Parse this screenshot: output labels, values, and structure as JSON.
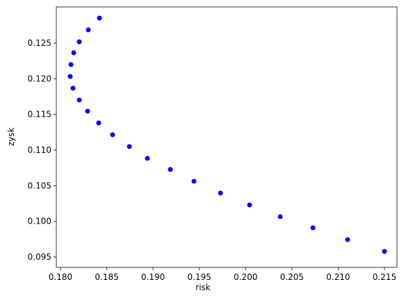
{
  "chart_data": {
    "type": "scatter",
    "xlabel": "risk",
    "ylabel": "zysk",
    "color": "blue",
    "x": [
      0.18421,
      0.183,
      0.18203,
      0.18143,
      0.18113,
      0.18105,
      0.18135,
      0.18203,
      0.18293,
      0.18413,
      0.18563,
      0.18744,
      0.18939,
      0.19187,
      0.19442,
      0.19728,
      0.20043,
      0.20374,
      0.20727,
      0.21102,
      0.215
    ],
    "values": [
      0.12851,
      0.12685,
      0.12519,
      0.12364,
      0.12198,
      0.12032,
      0.11867,
      0.11701,
      0.11545,
      0.1138,
      0.11214,
      0.11049,
      0.10883,
      0.10727,
      0.10562,
      0.10396,
      0.1023,
      0.10065,
      0.09909,
      0.09743,
      0.09578
    ],
    "xlim": [
      0.17955,
      0.21635
    ],
    "ylim": [
      0.09354,
      0.13007
    ],
    "xticks": [
      {
        "value": 0.18,
        "label": "0.180"
      },
      0.185,
      {
        "value": 0.19,
        "label": "0.190"
      },
      0.195,
      {
        "value": 0.2,
        "label": "0.200"
      },
      0.205,
      {
        "value": 0.21,
        "label": "0.210"
      },
      0.215
    ],
    "yticks": [
      0.095,
      {
        "value": 0.1,
        "label": "0.100"
      },
      0.105,
      {
        "value": 0.11,
        "label": "0.110"
      },
      0.115,
      {
        "value": 0.12,
        "label": "0.120"
      },
      0.125
    ],
    "grid": false
  }
}
